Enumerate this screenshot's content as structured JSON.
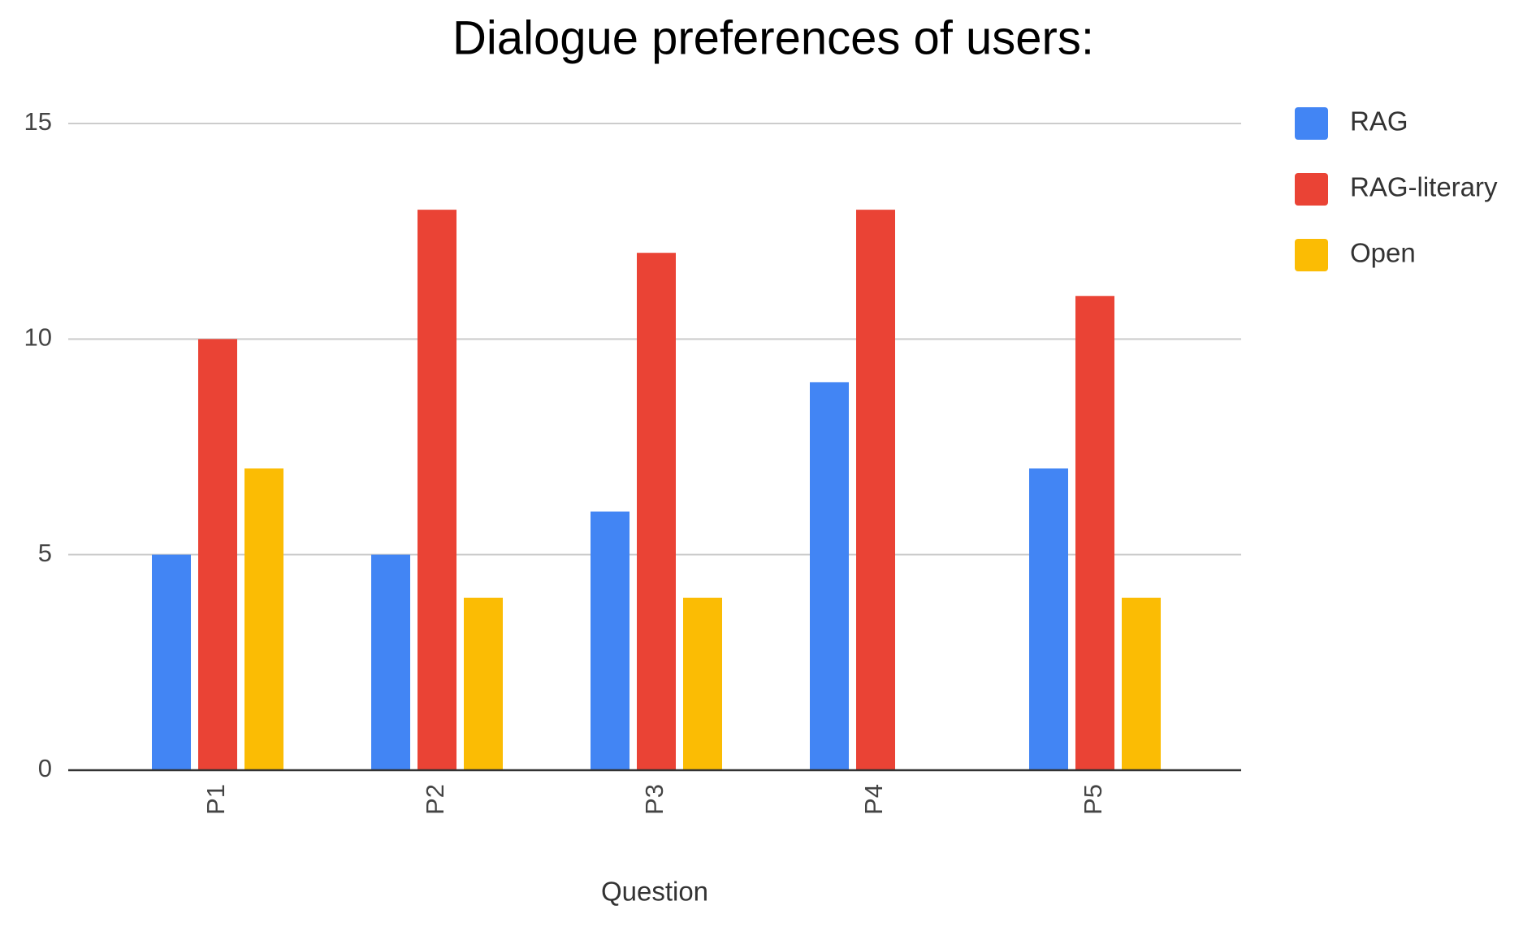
{
  "chart_data": {
    "type": "bar",
    "title": "Dialogue preferences of users:",
    "x_label": "Question",
    "categories": [
      "P1",
      "P2",
      "P3",
      "P4",
      "P5"
    ],
    "series": [
      {
        "name": "RAG",
        "color": "#4285f4",
        "values": [
          5,
          5,
          6,
          9,
          7
        ]
      },
      {
        "name": "RAG-literary",
        "color": "#ea4335",
        "values": [
          10,
          13,
          12,
          13,
          11
        ]
      },
      {
        "name": "Open",
        "color": "#fbbc04",
        "values": [
          7,
          4,
          4,
          0,
          4
        ]
      }
    ],
    "ylim": [
      0,
      15
    ],
    "yticks": [
      0,
      5,
      10,
      15
    ],
    "grid": true,
    "legend": "right"
  }
}
